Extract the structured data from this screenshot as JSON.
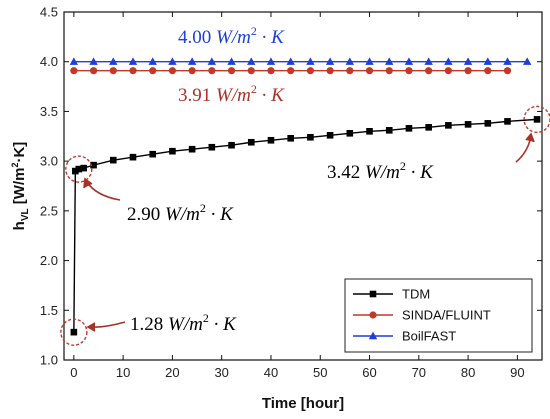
{
  "chart_data": {
    "type": "line",
    "xlabel": "Time [hour]",
    "ylabel": "h_VL [W/m²·K]",
    "ylabel_main": "h",
    "ylabel_sub": "VL",
    "ylabel_rest": " [W/m",
    "ylabel_sup": "2",
    "ylabel_end": "·K]",
    "xlim": [
      -2,
      95
    ],
    "ylim": [
      1.0,
      4.5
    ],
    "xticks": [
      0,
      10,
      20,
      30,
      40,
      50,
      60,
      70,
      80,
      90
    ],
    "yticks": [
      1.0,
      1.5,
      2.0,
      2.5,
      3.0,
      3.5,
      4.0,
      4.5
    ],
    "ytick_labels": [
      "1.0",
      "1.5",
      "2.0",
      "2.5",
      "3.0",
      "3.5",
      "4.0",
      "4.5"
    ],
    "legend_position": "bottom-right",
    "series": [
      {
        "name": "TDM",
        "color": "#000000",
        "marker": "square",
        "x": [
          0,
          0.3,
          1,
          2,
          4,
          8,
          12,
          16,
          20,
          24,
          28,
          32,
          36,
          40,
          44,
          48,
          52,
          56,
          60,
          64,
          68,
          72,
          76,
          80,
          84,
          88,
          94
        ],
        "y": [
          1.28,
          2.9,
          2.92,
          2.93,
          2.96,
          3.01,
          3.04,
          3.07,
          3.1,
          3.12,
          3.14,
          3.16,
          3.19,
          3.21,
          3.23,
          3.24,
          3.26,
          3.28,
          3.3,
          3.31,
          3.33,
          3.34,
          3.36,
          3.37,
          3.38,
          3.4,
          3.42
        ]
      },
      {
        "name": "SINDA/FLUINT",
        "color": "#c0392b",
        "marker": "circle",
        "x": [
          0,
          4,
          8,
          12,
          16,
          20,
          24,
          28,
          32,
          36,
          40,
          44,
          48,
          52,
          56,
          60,
          64,
          68,
          72,
          76,
          80,
          84,
          88
        ],
        "y": [
          3.91,
          3.91,
          3.91,
          3.91,
          3.91,
          3.91,
          3.91,
          3.91,
          3.91,
          3.91,
          3.91,
          3.91,
          3.91,
          3.91,
          3.91,
          3.91,
          3.91,
          3.91,
          3.91,
          3.91,
          3.91,
          3.91,
          3.91
        ]
      },
      {
        "name": "BoilFAST",
        "color": "#1f3fd6",
        "marker": "triangle",
        "x": [
          0,
          4,
          8,
          12,
          16,
          20,
          24,
          28,
          32,
          36,
          40,
          44,
          48,
          52,
          56,
          60,
          64,
          68,
          72,
          76,
          80,
          84,
          88,
          92
        ],
        "y": [
          4.0,
          4.0,
          4.0,
          4.0,
          4.0,
          4.0,
          4.0,
          4.0,
          4.0,
          4.0,
          4.0,
          4.0,
          4.0,
          4.0,
          4.0,
          4.0,
          4.0,
          4.0,
          4.0,
          4.0,
          4.0,
          4.0,
          4.0,
          4.0
        ]
      }
    ],
    "annotations": [
      {
        "id": "a400",
        "value": "4.00",
        "unit_w": " W",
        "unit_m": "/m",
        "sup": "2",
        "unit_k": " · K",
        "color": "#1f3fd6"
      },
      {
        "id": "a391",
        "value": "3.91",
        "unit_w": " W",
        "unit_m": "/m",
        "sup": "2",
        "unit_k": " · K",
        "color": "#a93226"
      },
      {
        "id": "a342",
        "value": "3.42",
        "unit_w": " W",
        "unit_m": "/m",
        "sup": "2",
        "unit_k": " · K",
        "color": "#111111"
      },
      {
        "id": "a290",
        "value": "2.90",
        "unit_w": " W",
        "unit_m": "/m",
        "sup": "2",
        "unit_k": " · K",
        "color": "#111111"
      },
      {
        "id": "a128",
        "value": "1.28",
        "unit_w": " W",
        "unit_m": "/m",
        "sup": "2",
        "unit_k": " · K",
        "color": "#111111"
      }
    ],
    "highlight_color": "#c0392b"
  }
}
